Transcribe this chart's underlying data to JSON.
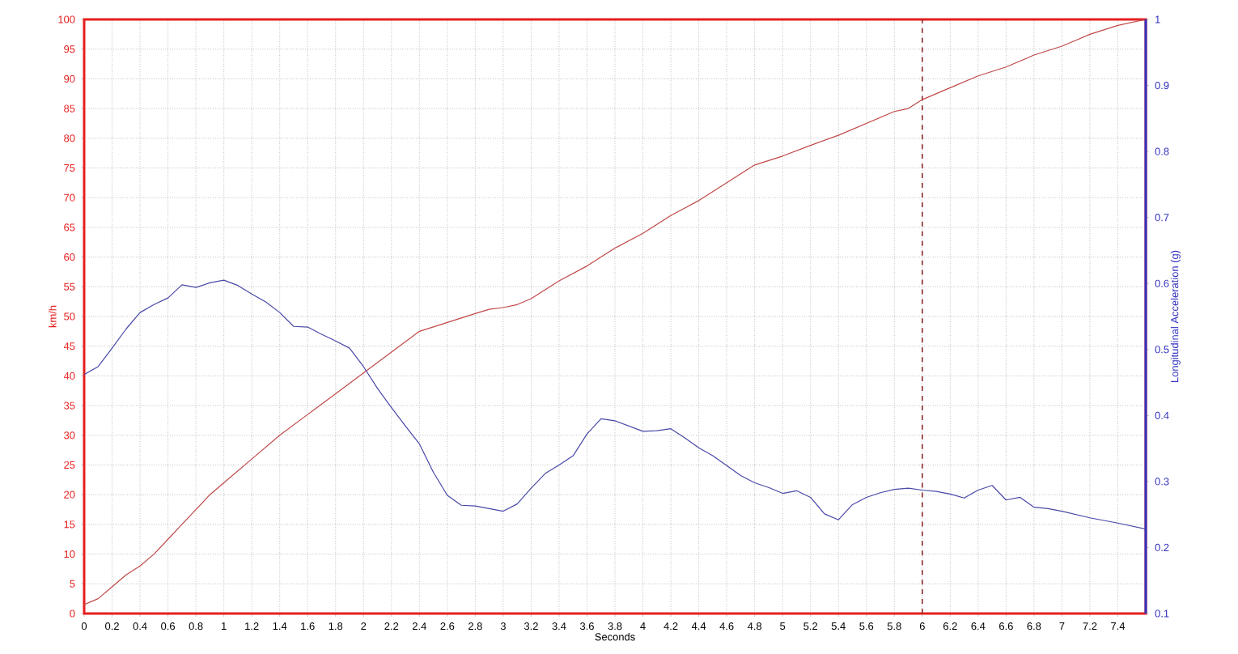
{
  "chart_data": {
    "type": "line",
    "xlabel": "Seconds",
    "ylabel": "km/h",
    "y2label": "Longitudinal Acceleration (g)",
    "xlim": [
      0,
      7.6
    ],
    "ylim": [
      0,
      100
    ],
    "y2lim": [
      0.1,
      1
    ],
    "xticks": [
      0,
      0.2,
      0.4,
      0.6,
      0.8,
      1,
      1.2,
      1.4,
      1.6,
      1.8,
      2,
      2.2,
      2.4,
      2.6,
      2.8,
      3,
      3.2,
      3.4,
      3.6,
      3.8,
      4,
      4.2,
      4.4,
      4.6,
      4.8,
      5,
      5.2,
      5.4,
      5.6,
      5.8,
      6,
      6.2,
      6.4,
      6.6,
      6.8,
      7,
      7.2,
      7.4
    ],
    "yticks": [
      0,
      5,
      10,
      15,
      20,
      25,
      30,
      35,
      40,
      45,
      50,
      55,
      60,
      65,
      70,
      75,
      80,
      85,
      90,
      95,
      100
    ],
    "y2ticks": [
      0.1,
      0.2,
      0.3,
      0.4,
      0.5,
      0.6,
      0.7,
      0.8,
      0.9,
      1
    ],
    "grid": true,
    "series": [
      {
        "color": "#c04848",
        "x": [
          0,
          0.1,
          0.2,
          0.3,
          0.4,
          0.5,
          0.6,
          0.7,
          0.8,
          0.9,
          1.0,
          1.2,
          1.4,
          1.6,
          1.8,
          2.0,
          2.2,
          2.4,
          2.6,
          2.8,
          2.9,
          3.0,
          3.1,
          3.2,
          3.4,
          3.6,
          3.8,
          4.0,
          4.2,
          4.4,
          4.6,
          4.8,
          5.0,
          5.2,
          5.4,
          5.6,
          5.8,
          5.9,
          6.0,
          6.2,
          6.4,
          6.6,
          6.8,
          7.0,
          7.1,
          7.2,
          7.4,
          7.6
        ],
        "values": [
          1.5,
          2.5,
          4.5,
          6.5,
          8,
          10,
          12.5,
          15,
          17.5,
          20,
          22,
          26,
          30,
          33.5,
          37,
          40.5,
          44,
          47.5,
          49,
          50.5,
          51.2,
          51.5,
          52,
          53,
          56,
          58.5,
          61.5,
          64,
          67,
          69.5,
          72.5,
          75.5,
          77,
          78.8,
          80.5,
          82.5,
          84.5,
          85,
          86.5,
          88.5,
          90.5,
          92,
          94,
          95.5,
          96.5,
          97.5,
          99,
          100
        ]
      },
      {
        "color": "#4848a8",
        "axis": "y2",
        "x": [
          0,
          0.1,
          0.2,
          0.3,
          0.4,
          0.5,
          0.6,
          0.7,
          0.8,
          0.9,
          1.0,
          1.1,
          1.2,
          1.3,
          1.4,
          1.5,
          1.6,
          1.7,
          1.8,
          1.9,
          2.0,
          2.1,
          2.2,
          2.3,
          2.4,
          2.5,
          2.6,
          2.7,
          2.8,
          2.9,
          3.0,
          3.1,
          3.2,
          3.3,
          3.4,
          3.5,
          3.6,
          3.7,
          3.8,
          3.9,
          4.0,
          4.1,
          4.2,
          4.3,
          4.4,
          4.5,
          4.6,
          4.7,
          4.8,
          4.9,
          5.0,
          5.1,
          5.2,
          5.3,
          5.4,
          5.5,
          5.6,
          5.7,
          5.8,
          5.9,
          6.0,
          6.1,
          6.2,
          6.3,
          6.4,
          6.5,
          6.6,
          6.7,
          6.8,
          6.9,
          7.0,
          7.2,
          7.4,
          7.6
        ],
        "values": [
          0.462,
          0.474,
          0.502,
          0.531,
          0.556,
          0.568,
          0.578,
          0.598,
          0.594,
          0.601,
          0.605,
          0.597,
          0.584,
          0.572,
          0.556,
          0.535,
          0.534,
          0.523,
          0.513,
          0.502,
          0.474,
          0.441,
          0.412,
          0.384,
          0.357,
          0.314,
          0.279,
          0.264,
          0.263,
          0.259,
          0.255,
          0.266,
          0.29,
          0.312,
          0.325,
          0.339,
          0.372,
          0.395,
          0.392,
          0.384,
          0.376,
          0.377,
          0.38,
          0.366,
          0.351,
          0.339,
          0.324,
          0.309,
          0.298,
          0.291,
          0.282,
          0.286,
          0.276,
          0.251,
          0.242,
          0.265,
          0.276,
          0.283,
          0.288,
          0.29,
          0.287,
          0.285,
          0.281,
          0.275,
          0.287,
          0.294,
          0.272,
          0.276,
          0.261,
          0.259,
          0.255,
          0.245,
          0.237,
          0.228
        ]
      }
    ],
    "ref_lines": [
      {
        "axis": "x",
        "value": 6,
        "color": "#8b2a2a",
        "line_style": "dashed"
      }
    ]
  }
}
